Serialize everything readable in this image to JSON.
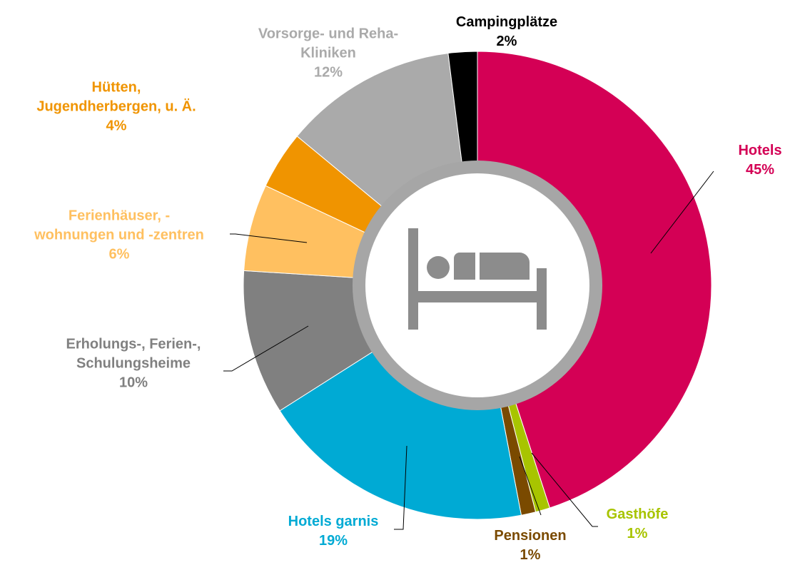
{
  "chart_data": {
    "type": "donut",
    "categories": [
      "Hotels",
      "Gasthöfe",
      "Pensionen",
      "Hotels garnis",
      "Erholungs-, Ferien-,\nSchulungsheime",
      "Ferienhäuser, -\nwohnungen und -zentren",
      "Hütten,\nJugendherbergen, u. Ä.",
      "Vorsorge- und Reha-\nKliniken",
      "Campingplätze"
    ],
    "values": [
      45,
      1,
      1,
      19,
      10,
      6,
      4,
      12,
      2
    ],
    "value_labels": [
      "45%",
      "1%",
      "1%",
      "19%",
      "10%",
      "6%",
      "4%",
      "12%",
      "2%"
    ],
    "colors": [
      "#d40055",
      "#a8c400",
      "#7a4a00",
      "#00aad4",
      "#808080",
      "#ffc060",
      "#f09400",
      "#aaaaaa",
      "#000000"
    ]
  }
}
